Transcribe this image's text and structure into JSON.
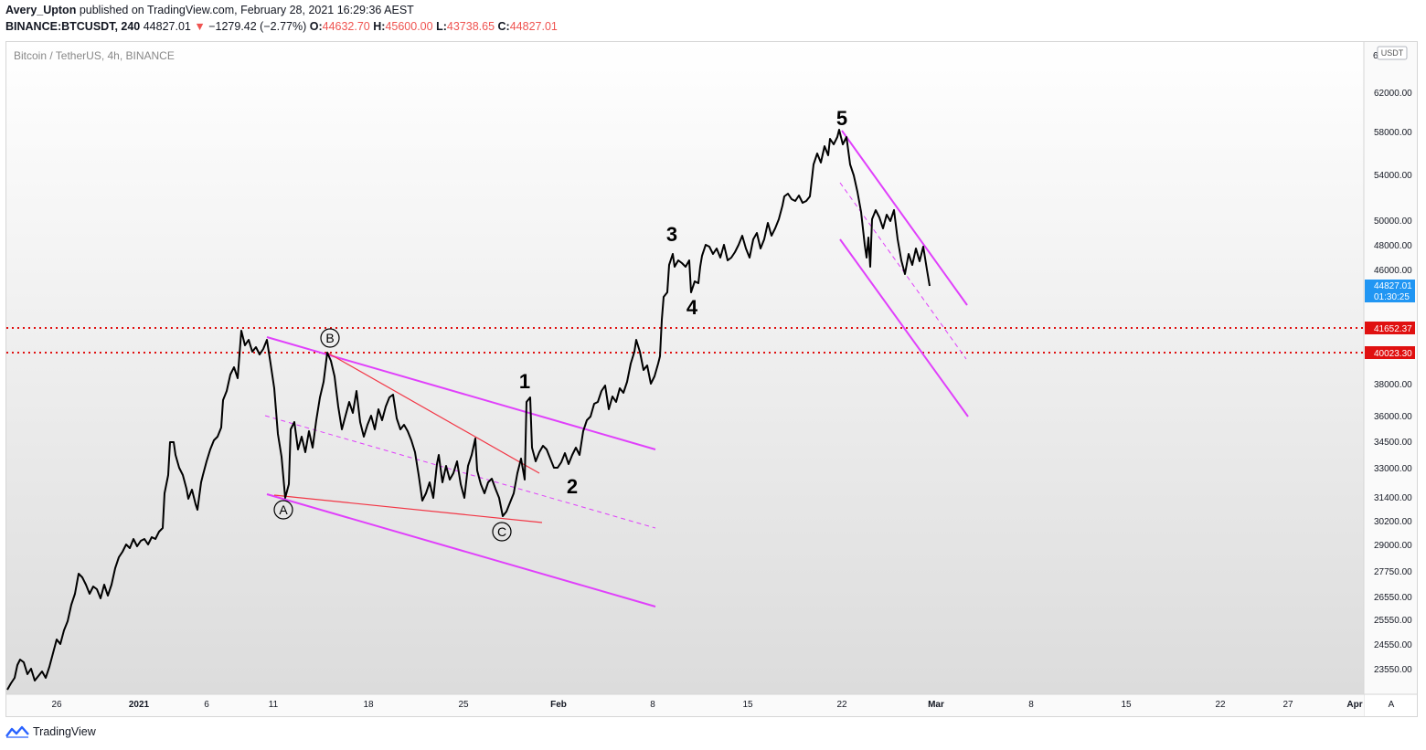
{
  "header": {
    "user": "Avery_Upton",
    "published": "published on TradingView.com, February 28, 2021 16:29:36 AEST"
  },
  "ticker": {
    "symbol": "BINANCE:BTCUSDT, 240",
    "price": "44827.01",
    "change_arrow": "▼",
    "change": "−1279.42 (−2.77%)",
    "o_label": "O:",
    "o": "44632.70",
    "h_label": "H:",
    "h": "45600.00",
    "l_label": "L:",
    "l": "43738.65",
    "c_label": "C:",
    "c": "44827.01"
  },
  "chart_title": "Bitcoin / TetherUS, 4h, BINANCE",
  "currency_badge": "USDT",
  "price_axis": {
    "top_label": "6",
    "ticks": [
      "62000.00",
      "58000.00",
      "54000.00",
      "50000.00",
      "48000.00",
      "46000.00",
      "38000.00",
      "36000.00",
      "34500.00",
      "33000.00",
      "31400.00",
      "30200.00",
      "29000.00",
      "27750.00",
      "26550.00",
      "25550.00",
      "24550.00",
      "23550.00"
    ],
    "current_price": "44827.01",
    "countdown": "01:30:25",
    "level1": "41652.37",
    "level2": "40023.30"
  },
  "time_axis": [
    "26",
    "2021",
    "6",
    "11",
    "18",
    "25",
    "Feb",
    "8",
    "15",
    "22",
    "Mar",
    "8",
    "15",
    "22",
    "27",
    "Apr"
  ],
  "auto_button": "A",
  "wave_labels": {
    "w1": "1",
    "w2": "2",
    "w3": "3",
    "w4": "4",
    "w5": "5",
    "a": "A",
    "b": "B",
    "c": "C"
  },
  "footer": {
    "brand": "TradingView"
  },
  "colors": {
    "channel": "#e040fb",
    "trend_red": "#f23645",
    "level_red": "#e01010",
    "price_badge": "#2196f3",
    "candle_line": "#000000"
  }
}
